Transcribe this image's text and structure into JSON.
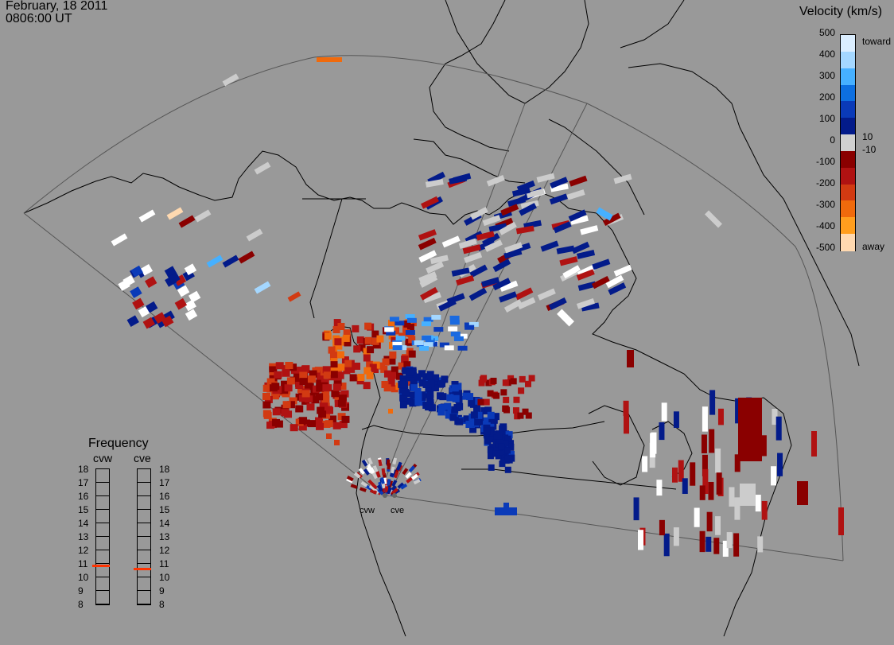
{
  "header": {
    "date": "February, 18 2011",
    "time": "0806:00 UT"
  },
  "colorbar": {
    "title": "Velocity (km/s)",
    "ticks": [
      "500",
      "400",
      "300",
      "200",
      "100",
      "10",
      "0",
      "-10",
      "-100",
      "-200",
      "-300",
      "-400",
      "-500"
    ],
    "toward_label": "toward",
    "away_label": "away",
    "colors": [
      "#dbeeff",
      "#a4d7ff",
      "#46b0ff",
      "#0d6fe0",
      "#0a3ab8",
      "#031b8a",
      "#d0d0d0",
      "#8a0000",
      "#b01212",
      "#d23a12",
      "#f06a0c",
      "#ff9e1e",
      "#ffd9b0"
    ]
  },
  "frequency": {
    "title": "Frequency",
    "radars": [
      "cvw",
      "cve"
    ],
    "scale": [
      "18",
      "17",
      "16",
      "15",
      "14",
      "13",
      "12",
      "11",
      "10",
      "9",
      "8"
    ],
    "values_mhz": [
      10.8,
      10.6
    ],
    "marker_color": "#ff3300"
  },
  "radar_sites": [
    {
      "code": "cvw"
    },
    {
      "code": "cve"
    }
  ],
  "map": {
    "background": "#999999",
    "colors": {
      "dark_blue": "#031b8a",
      "med_blue": "#0a3ab8",
      "blue": "#1a6ae0",
      "light_blue": "#46b0ff",
      "pale_blue": "#a4d7ff",
      "gray": "#cccccc",
      "white": "#ffffff",
      "dark_red": "#8a0000",
      "red": "#b01212",
      "red_orange": "#d23a12",
      "orange": "#f06a0c",
      "light_orange": "#ff9e1e",
      "peach": "#ffd9b0"
    }
  }
}
